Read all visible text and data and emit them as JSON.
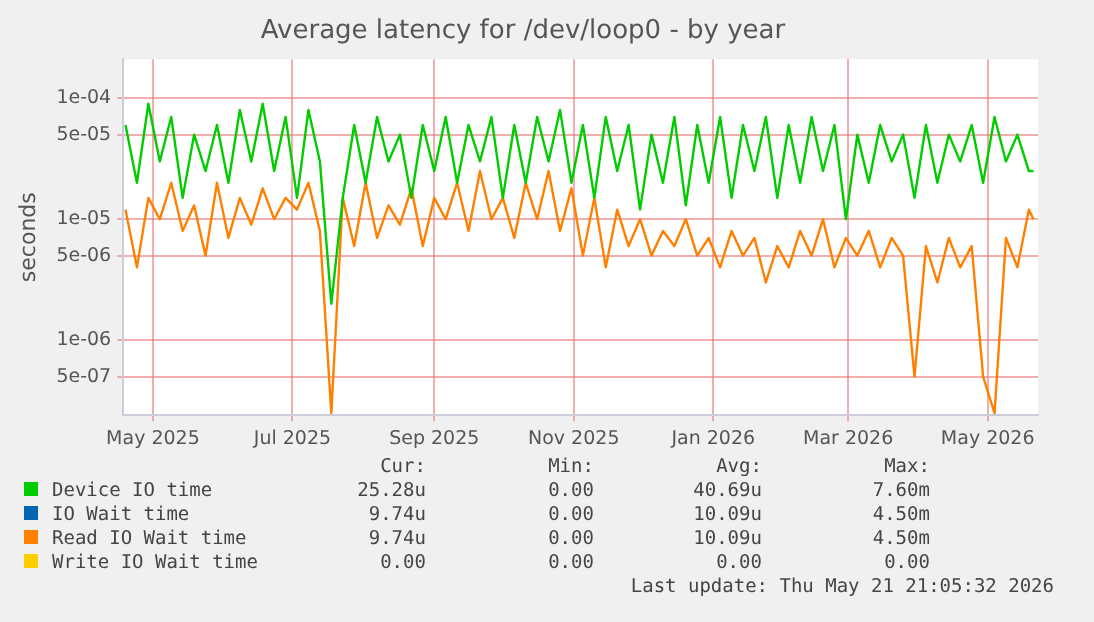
{
  "chart_data": {
    "type": "line",
    "title": "Average latency for /dev/loop0 - by year",
    "ylabel": "seconds",
    "x": [
      "2025-04-19",
      "2025-04-24",
      "2025-04-29",
      "2025-05-04",
      "2025-05-09",
      "2025-05-14",
      "2025-05-19",
      "2025-05-24",
      "2025-05-29",
      "2025-06-03",
      "2025-06-08",
      "2025-06-13",
      "2025-06-18",
      "2025-06-23",
      "2025-06-28",
      "2025-07-03",
      "2025-07-08",
      "2025-07-13",
      "2025-07-18",
      "2025-07-23",
      "2025-07-28",
      "2025-08-02",
      "2025-08-07",
      "2025-08-12",
      "2025-08-17",
      "2025-08-22",
      "2025-08-27",
      "2025-09-01",
      "2025-09-06",
      "2025-09-11",
      "2025-09-16",
      "2025-09-21",
      "2025-09-26",
      "2025-10-01",
      "2025-10-06",
      "2025-10-11",
      "2025-10-16",
      "2025-10-21",
      "2025-10-26",
      "2025-10-31",
      "2025-11-05",
      "2025-11-10",
      "2025-11-15",
      "2025-11-20",
      "2025-11-25",
      "2025-11-30",
      "2025-12-05",
      "2025-12-10",
      "2025-12-15",
      "2025-12-20",
      "2025-12-25",
      "2025-12-30",
      "2026-01-04",
      "2026-01-09",
      "2026-01-14",
      "2026-01-19",
      "2026-01-24",
      "2026-01-29",
      "2026-02-03",
      "2026-02-08",
      "2026-02-13",
      "2026-02-18",
      "2026-02-23",
      "2026-02-28",
      "2026-03-05",
      "2026-03-10",
      "2026-03-15",
      "2026-03-20",
      "2026-03-25",
      "2026-03-30",
      "2026-04-04",
      "2026-04-09",
      "2026-04-14",
      "2026-04-19",
      "2026-04-24",
      "2026-04-29",
      "2026-05-04",
      "2026-05-09",
      "2026-05-14",
      "2026-05-19",
      "2026-05-21"
    ],
    "series": [
      {
        "name": "Device IO time",
        "color": "#00cc00",
        "values": [
          6e-05,
          2e-05,
          9e-05,
          3e-05,
          7e-05,
          1.5e-05,
          5e-05,
          2.5e-05,
          6e-05,
          2e-05,
          8e-05,
          3e-05,
          9e-05,
          2.5e-05,
          7e-05,
          1.5e-05,
          8e-05,
          3e-05,
          2e-06,
          1.5e-05,
          6e-05,
          2e-05,
          7e-05,
          3e-05,
          5e-05,
          1.5e-05,
          6e-05,
          2.5e-05,
          7e-05,
          2e-05,
          6e-05,
          3e-05,
          7e-05,
          1.5e-05,
          6e-05,
          2e-05,
          7e-05,
          3e-05,
          8e-05,
          2e-05,
          6e-05,
          1.5e-05,
          7e-05,
          2.5e-05,
          6e-05,
          1.2e-05,
          5e-05,
          2e-05,
          7e-05,
          1.3e-05,
          6e-05,
          2e-05,
          7e-05,
          1.5e-05,
          6e-05,
          2.5e-05,
          7e-05,
          1.5e-05,
          6e-05,
          2e-05,
          7e-05,
          2.5e-05,
          6e-05,
          1e-05,
          5e-05,
          2e-05,
          6e-05,
          3e-05,
          5e-05,
          1.5e-05,
          6e-05,
          2e-05,
          5e-05,
          3e-05,
          6e-05,
          2e-05,
          7e-05,
          3e-05,
          5e-05,
          2.5e-05,
          2.5e-05
        ]
      },
      {
        "name": "IO Wait time",
        "color": "#0066b3",
        "values": [
          null,
          null,
          null,
          null,
          null,
          null,
          null,
          null,
          null,
          null,
          null,
          null,
          null,
          null,
          null,
          null,
          null,
          null,
          null,
          null,
          null,
          null,
          null,
          null,
          null,
          null,
          null,
          null,
          null,
          null,
          null,
          null,
          null,
          null,
          null,
          null,
          null,
          null,
          null,
          null,
          null,
          null,
          null,
          null,
          null,
          null,
          null,
          null,
          null,
          null,
          null,
          null,
          null,
          null,
          null,
          null,
          null,
          null,
          null,
          null,
          null,
          null,
          null,
          null,
          null,
          null,
          null,
          null,
          null,
          null,
          null,
          null,
          null,
          null,
          null,
          null,
          null,
          null,
          null,
          null,
          null
        ]
      },
      {
        "name": "Read IO Wait time",
        "color": "#ff8000",
        "values": [
          1.2e-05,
          4e-06,
          1.5e-05,
          1e-05,
          2e-05,
          8e-06,
          1.3e-05,
          5e-06,
          2e-05,
          7e-06,
          1.5e-05,
          9e-06,
          1.8e-05,
          1e-05,
          1.5e-05,
          1.2e-05,
          2e-05,
          8e-06,
          2.5e-07,
          1.5e-05,
          6e-06,
          2e-05,
          7e-06,
          1.3e-05,
          9e-06,
          1.8e-05,
          6e-06,
          1.5e-05,
          1e-05,
          2e-05,
          8e-06,
          2.5e-05,
          1e-05,
          1.5e-05,
          7e-06,
          2e-05,
          1e-05,
          2.5e-05,
          8e-06,
          1.8e-05,
          5e-06,
          1.5e-05,
          4e-06,
          1.2e-05,
          6e-06,
          1e-05,
          5e-06,
          8e-06,
          6e-06,
          1e-05,
          5e-06,
          7e-06,
          4e-06,
          8e-06,
          5e-06,
          7e-06,
          3e-06,
          6e-06,
          4e-06,
          8e-06,
          5e-06,
          1e-05,
          4e-06,
          7e-06,
          5e-06,
          8e-06,
          4e-06,
          7e-06,
          5e-06,
          5e-07,
          6e-06,
          3e-06,
          7e-06,
          4e-06,
          6e-06,
          5e-07,
          2.5e-07,
          7e-06,
          4e-06,
          1.2e-05,
          1e-05
        ]
      },
      {
        "name": "Write IO Wait time",
        "color": "#ffcc00",
        "values": [
          null,
          null,
          null,
          null,
          null,
          null,
          null,
          null,
          null,
          null,
          null,
          null,
          null,
          null,
          null,
          null,
          null,
          null,
          null,
          null,
          null,
          null,
          null,
          null,
          null,
          null,
          null,
          null,
          null,
          null,
          null,
          null,
          null,
          null,
          null,
          null,
          null,
          null,
          null,
          null,
          null,
          null,
          null,
          null,
          null,
          null,
          null,
          null,
          null,
          null,
          null,
          null,
          null,
          null,
          null,
          null,
          null,
          null,
          null,
          null,
          null,
          null,
          null,
          null,
          null,
          null,
          null,
          null,
          null,
          null,
          null,
          null,
          null,
          null,
          null,
          null,
          null,
          null,
          null,
          null,
          null
        ]
      }
    ],
    "log": "y",
    "ylim": [
      2.4e-07,
      0.00021
    ],
    "yticks": [
      {
        "value": 0.0001,
        "label": "1e-04"
      },
      {
        "value": 5e-05,
        "label": "5e-05"
      },
      {
        "value": 1e-05,
        "label": "1e-05"
      },
      {
        "value": 5e-06,
        "label": "5e-06"
      },
      {
        "value": 1e-06,
        "label": "1e-06"
      },
      {
        "value": 5e-07,
        "label": "5e-07"
      }
    ],
    "xlim": [
      "2025-04-18",
      "2026-05-23"
    ],
    "xticks": [
      {
        "value": "2025-05-01",
        "label": "May 2025"
      },
      {
        "value": "2025-07-01",
        "label": "Jul 2025"
      },
      {
        "value": "2025-09-01",
        "label": "Sep 2025"
      },
      {
        "value": "2025-11-01",
        "label": "Nov 2025"
      },
      {
        "value": "2026-01-01",
        "label": "Jan 2026"
      },
      {
        "value": "2026-03-01",
        "label": "Mar 2026"
      },
      {
        "value": "2026-05-01",
        "label": "May 2026"
      }
    ],
    "grid": true,
    "legend": "bottom",
    "marker": "none",
    "annotations": [
      "Cur:",
      "Min:",
      "Avg:",
      "Max:",
      "25.28u",
      "0.00",
      "40.69u",
      "7.60m",
      "9.74u",
      "0.00",
      "10.09u",
      "4.50m",
      "9.74u",
      "0.00",
      "10.09u",
      "4.50m",
      "0.00",
      "0.00",
      "0.00",
      "0.00",
      "Last update: Thu May 21 21:05:32 2026"
    ]
  }
}
